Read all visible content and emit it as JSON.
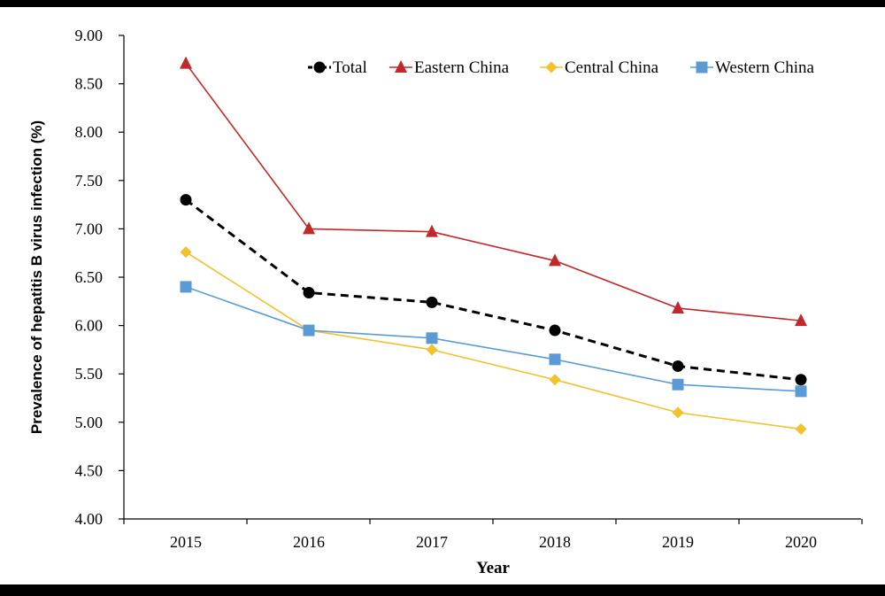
{
  "chart_data": {
    "type": "line",
    "title": "",
    "xlabel": "Year",
    "ylabel": "Prevalence of hepatitis B virus infection (%)",
    "categories": [
      "2015",
      "2016",
      "2017",
      "2018",
      "2019",
      "2020"
    ],
    "ylim": [
      4.0,
      9.0
    ],
    "yticks": [
      "4.00",
      "4.50",
      "5.00",
      "5.50",
      "6.00",
      "6.50",
      "7.00",
      "7.50",
      "8.00",
      "8.50",
      "9.00"
    ],
    "grid": false,
    "legend_position": "top-right",
    "series": [
      {
        "name": "Total",
        "values": [
          7.3,
          6.34,
          6.24,
          5.95,
          5.58,
          5.44
        ],
        "color": "#000000",
        "marker": "circle",
        "dashed": true
      },
      {
        "name": "Eastern China",
        "values": [
          8.71,
          7.0,
          6.97,
          6.67,
          6.18,
          6.05
        ],
        "color": "#C0282B",
        "marker": "triangle",
        "dashed": false
      },
      {
        "name": "Central China",
        "values": [
          6.76,
          5.95,
          5.75,
          5.44,
          5.1,
          4.93
        ],
        "color": "#F2C12E",
        "marker": "diamond",
        "dashed": false
      },
      {
        "name": "Western China",
        "values": [
          6.4,
          5.95,
          5.87,
          5.65,
          5.39,
          5.32
        ],
        "color": "#5B9BD5",
        "marker": "square",
        "dashed": false
      }
    ]
  }
}
